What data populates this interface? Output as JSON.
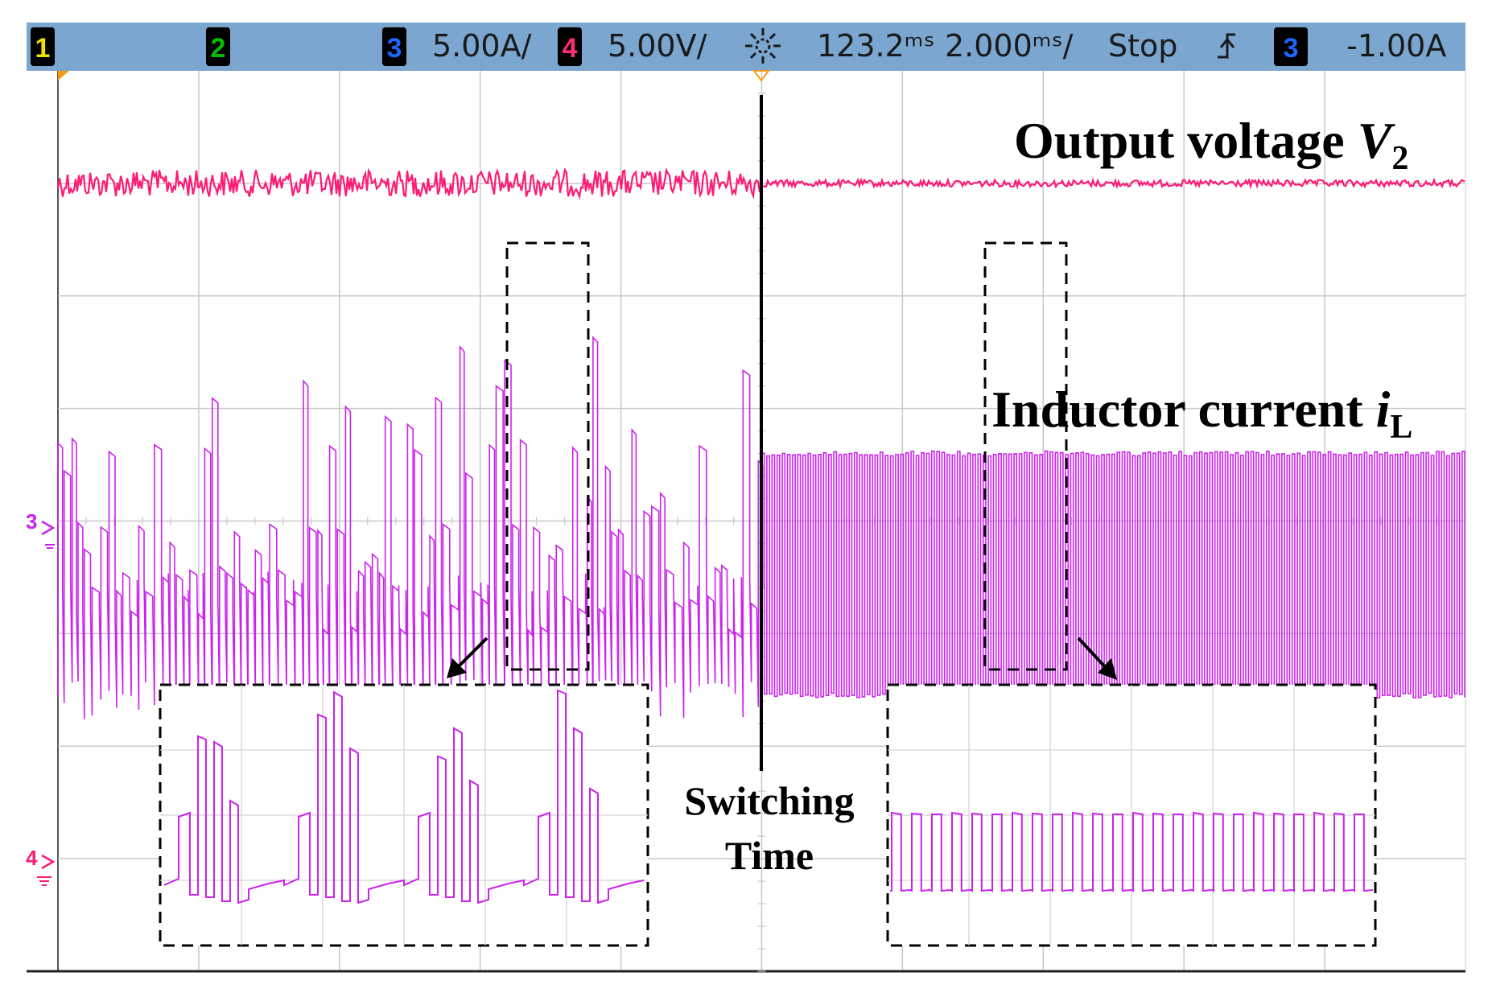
{
  "header": {
    "ch1": {
      "label": "1",
      "color": "#f0e000"
    },
    "ch2": {
      "label": "2",
      "color": "#00c000"
    },
    "ch3": {
      "label": "3",
      "color": "#1e64ff",
      "scale": "5.00A/"
    },
    "ch4": {
      "label": "4",
      "color": "#ff2d78",
      "scale": "5.00V/"
    },
    "trigger_icon": "trigger-sun-icon",
    "time_position": "123.2ᵐˢ",
    "time_scale": "2.000ᵐˢ/",
    "run_state": "Stop",
    "trigger_edge_icon": "rising-edge-icon",
    "trigger_channel": {
      "label": "3",
      "color": "#1e64ff"
    },
    "trigger_level": "-1.00A",
    "header_bg": "#7aa6cf"
  },
  "annotations": {
    "output_voltage_label": "Output voltage ",
    "output_voltage_var": "V",
    "output_voltage_sub": "2",
    "inductor_label": "Inductor current ",
    "inductor_var": "i",
    "inductor_sub": "L",
    "switching_line1": "Switching",
    "switching_line2": "Time"
  },
  "markers": {
    "ch3_marker": "3",
    "ch4_marker": "4"
  },
  "chart_data": {
    "type": "line",
    "grid": true,
    "grid_divisions": {
      "x": 10,
      "y": 8
    },
    "time_per_div_ms": 2.0,
    "switching_time_div": 5.0,
    "series": [
      {
        "name": "Output voltage V2",
        "color": "#ff1a75",
        "before_switch": {
          "level_div": 1.0,
          "noise_div": 0.12
        },
        "after_switch": {
          "level_div": 1.0,
          "noise_div": 0.05
        }
      },
      {
        "name": "Inductor current iL",
        "color": "#cc22ee",
        "before_switch": {
          "low_div": 5.55,
          "mid_div": 4.65,
          "peak_div_max": 2.3,
          "behaviour": "irregular bursts"
        },
        "after_switch": {
          "low_div": 5.55,
          "high_div": 3.4,
          "behaviour": "regular square wave"
        }
      }
    ],
    "zoom_left": {
      "pattern": "irregular steps",
      "windows": 4
    },
    "zoom_right": {
      "pattern": "regular square wave",
      "periods": 24
    }
  }
}
